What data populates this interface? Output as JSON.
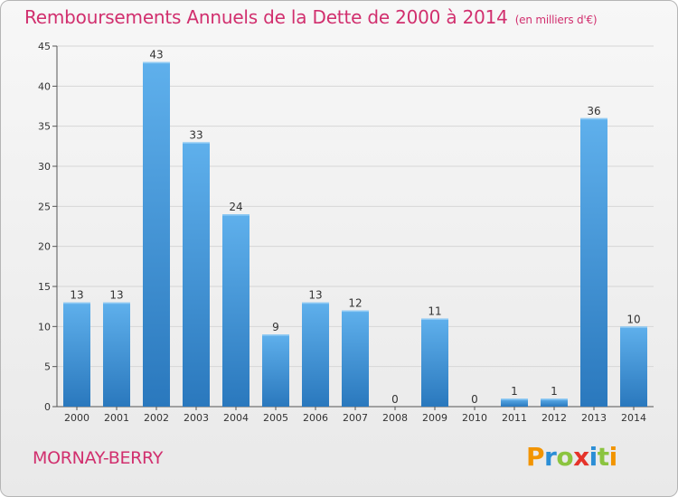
{
  "header": {
    "title": "Remboursements Annuels de la Dette de 2000 à 2014",
    "unit": "(en milliers d'€)"
  },
  "footer": {
    "city": "MORNAY-BERRY",
    "brand": "Proxiti",
    "brand_letter_colors": [
      "#f29400",
      "#2b8ed6",
      "#8bc43f",
      "#e5332a",
      "#2b8ed6",
      "#8bc43f",
      "#f29400"
    ]
  },
  "colors": {
    "bar_top": "#5fb0ec",
    "bar_bottom": "#2a78bd",
    "accent": "#d12f6e",
    "grid": "#d6d6d6"
  },
  "chart_data": {
    "type": "bar",
    "title": "Remboursements Annuels de la Dette de 2000 à 2014",
    "subtitle": "(en milliers d'€)",
    "categories": [
      "2000",
      "2001",
      "2002",
      "2003",
      "2004",
      "2005",
      "2006",
      "2007",
      "2008",
      "2009",
      "2010",
      "2011",
      "2012",
      "2013",
      "2014"
    ],
    "values": [
      13,
      13,
      43,
      33,
      24,
      9,
      13,
      12,
      0,
      11,
      0,
      1,
      1,
      36,
      10
    ],
    "data_labels": [
      "13",
      "13",
      "43",
      "33",
      "24",
      "9",
      "13",
      "12",
      "0",
      "11",
      "0",
      "1",
      "1",
      "36",
      "10"
    ],
    "ylim": [
      0,
      45
    ],
    "yticks": [
      0,
      5,
      10,
      15,
      20,
      25,
      30,
      35,
      40,
      45
    ],
    "grid": true,
    "legend": "none"
  }
}
